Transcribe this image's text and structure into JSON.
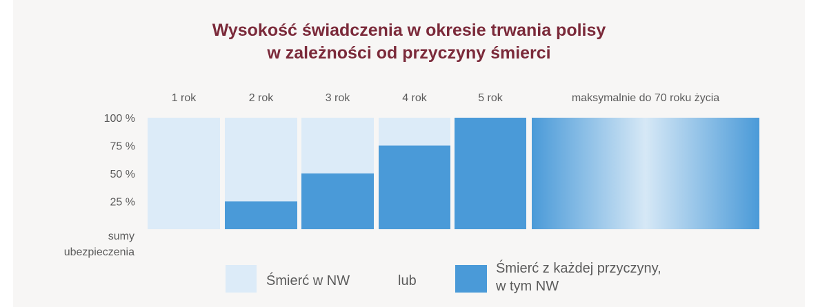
{
  "title_lines": [
    "Wysokość świadczenia w okresie trwania polisy",
    "w zależności od przyczyny śmierci"
  ],
  "colors": {
    "light": "#dcebf8",
    "dark": "#4a9ad8",
    "title": "#7b2a3a",
    "text": "#5b5b5b",
    "background": "#f7f6f5"
  },
  "legend": {
    "light_label": "Śmierć w NW",
    "separator": "lub",
    "dark_label_line1": "Śmierć z każdej przyczyny,",
    "dark_label_line2": "w tym NW"
  },
  "chart_data": {
    "type": "bar",
    "title": "Wysokość świadczenia w okresie trwania polisy w zależności od przyczyny śmierci",
    "categories": [
      "1 rok",
      "2 rok",
      "3 rok",
      "4 rok",
      "5 rok",
      "maksymalnie do 70 roku życia"
    ],
    "series": [
      {
        "name": "Śmierć w NW",
        "values": [
          100,
          100,
          100,
          100,
          100,
          100
        ]
      },
      {
        "name": "Śmierć z każdej przyczyny, w tym NW",
        "values": [
          0,
          25,
          50,
          75,
          100,
          100
        ]
      }
    ],
    "yticks": [
      {
        "value": 100,
        "label": "100 %"
      },
      {
        "value": 75,
        "label": "75 %"
      },
      {
        "value": 50,
        "label": "50 %"
      },
      {
        "value": 25,
        "label": "25 %"
      }
    ],
    "ylabel_lines": [
      "sumy",
      "ubezpieczenia"
    ],
    "ylim": [
      0,
      100
    ]
  }
}
